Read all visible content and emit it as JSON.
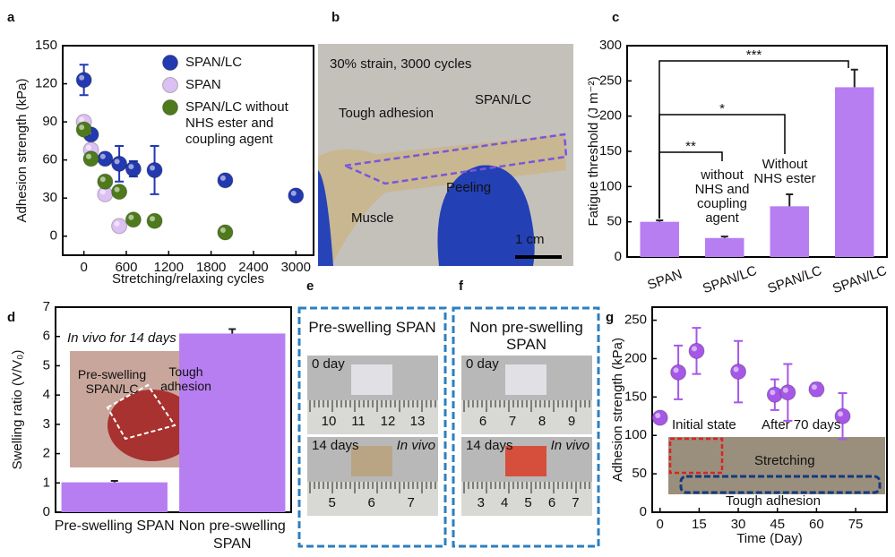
{
  "chart_data": [
    {
      "label": "a",
      "type": "scatter",
      "xlabel": "Stretching/relaxing cycles",
      "ylabel": "Adhesion strength (kPa)",
      "xlim": [
        -300,
        3250
      ],
      "ylim": [
        -15,
        150
      ],
      "xticks": [
        0,
        600,
        1200,
        1800,
        2400,
        3000
      ],
      "yticks": [
        0,
        30,
        60,
        90,
        120,
        150
      ],
      "series": [
        {
          "name": "SPAN/LC",
          "color": "#2339b0",
          "x": [
            0,
            100,
            300,
            500,
            700,
            1000,
            2000,
            3000
          ],
          "values": [
            123,
            80,
            61,
            57,
            53,
            52,
            44,
            32
          ],
          "errors": [
            12,
            4,
            3,
            14,
            6,
            19,
            3,
            3
          ]
        },
        {
          "name": "SPAN",
          "color": "#dcc0f2",
          "x": [
            0,
            100,
            300,
            500
          ],
          "values": [
            90,
            68,
            33,
            8
          ]
        },
        {
          "name": "SPAN/LC without NHS ester and coupling agent",
          "color": "#4e7a1c",
          "x": [
            0,
            100,
            300,
            500,
            700,
            1000,
            2000
          ],
          "values": [
            84,
            61,
            43,
            35,
            13,
            12,
            3
          ]
        }
      ]
    },
    {
      "label": "c",
      "type": "bar",
      "ylabel": "Fatigue threshold (J m⁻²)",
      "categories": [
        "SPAN",
        "SPAN/LC",
        "SPAN/LC",
        "SPAN/LC"
      ],
      "values": [
        50,
        27,
        72,
        241
      ],
      "errors": [
        2,
        2,
        17,
        25
      ],
      "color": "#b77ef2",
      "ylim": [
        0,
        300
      ],
      "yticks": [
        0,
        50,
        100,
        150,
        200,
        250,
        300
      ],
      "annotations": [
        [
          "without",
          "NHS and",
          "coupling",
          "agent"
        ],
        [
          "Without",
          "NHS ester"
        ]
      ],
      "significance": [
        "**",
        "*",
        "***"
      ]
    },
    {
      "label": "d",
      "type": "bar",
      "ylabel": "Swelling ratio (V/V₀)",
      "categories": [
        "Pre-swelling SPAN",
        "Non pre-swelling SPAN"
      ],
      "values": [
        1.02,
        6.1
      ],
      "errors": [
        0.05,
        0.15
      ],
      "color": "#b77ef2",
      "ylim": [
        0,
        7
      ],
      "yticks": [
        0,
        1,
        2,
        3,
        4,
        5,
        6,
        7
      ],
      "inset": [
        "In vivo for 14 days",
        "Pre-swelling SPAN/LC",
        "Tough adhesion"
      ]
    },
    {
      "label": "g",
      "type": "scatter",
      "xlabel": "Time (Day)",
      "ylabel": "Adhesion strength (kPa)",
      "xlim": [
        -3,
        87
      ],
      "ylim": [
        0,
        267
      ],
      "xticks": [
        0,
        15,
        30,
        45,
        60,
        75
      ],
      "yticks": [
        0,
        50,
        100,
        150,
        200,
        250
      ],
      "series": [
        {
          "color": "#a657e8",
          "x": [
            0,
            7,
            14,
            30,
            44,
            49,
            60,
            70
          ],
          "values": [
            123,
            182,
            210,
            183,
            153,
            156,
            160,
            125
          ],
          "errors": [
            5,
            35,
            30,
            40,
            20,
            37,
            8,
            30
          ]
        }
      ],
      "inset": [
        "Initial state",
        "After 70 days",
        "Stretching",
        "Tough adhesion"
      ]
    }
  ],
  "photos": [
    {
      "label": "b",
      "texts": [
        "30% strain, 3000 cycles",
        "Tough adhesion",
        "SPAN/LC",
        "Peeling",
        "Muscle",
        "1 cm"
      ]
    },
    {
      "label": "e",
      "title": "Pre-swelling SPAN",
      "top": "0 day",
      "bottom": "14 days",
      "note": "In vivo",
      "ruler_top": [
        10,
        11,
        12,
        13
      ],
      "ruler_bottom": [
        5,
        6,
        7
      ]
    },
    {
      "label": "f",
      "title": "Non pre-swelling SPAN",
      "top": "0 day",
      "bottom": "14 days",
      "note": "In vivo",
      "ruler_top": [
        6,
        7,
        8,
        9
      ],
      "ruler_bottom": [
        3,
        4,
        5,
        6,
        7
      ]
    }
  ]
}
